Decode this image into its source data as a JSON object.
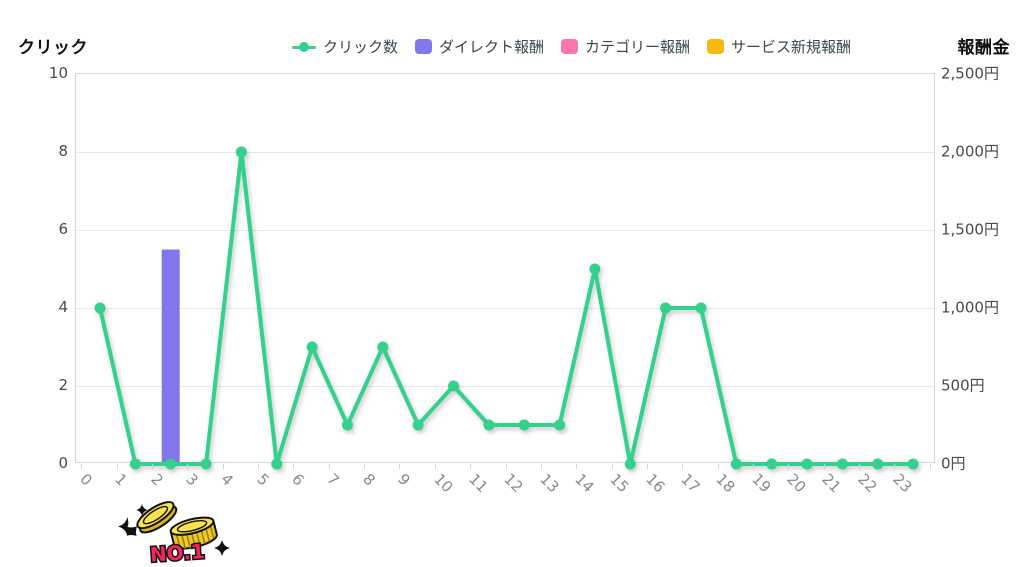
{
  "titles": {
    "left_axis": "クリック",
    "right_axis": "報酬金"
  },
  "legend": {
    "items": [
      {
        "label": "クリック数",
        "color": "#34d18d",
        "marker": "line-dot"
      },
      {
        "label": "ダイレクト報酬",
        "color": "#8277ea",
        "marker": "box"
      },
      {
        "label": "カテゴリー報酬",
        "color": "#fa75ab",
        "marker": "box"
      },
      {
        "label": "サービス新規報酬",
        "color": "#f5ba0b",
        "marker": "box"
      }
    ]
  },
  "badge": {
    "label": "NO.1"
  },
  "colors": {
    "line_green": "#34d18d",
    "bar_purple": "#8277ea",
    "pink": "#fa75ab",
    "yellow": "#f5ba0b",
    "axis_line": "#ccd6eb",
    "gridline": "#e7e7e7",
    "x_label": "#8a8a8a",
    "y_label": "#4a4a4a",
    "badge_red": "#f0275a"
  },
  "chart_data": {
    "type": "mixed-line-bar",
    "categories": [
      "0",
      "1",
      "2",
      "3",
      "4",
      "5",
      "6",
      "7",
      "8",
      "9",
      "10",
      "11",
      "12",
      "13",
      "14",
      "15",
      "16",
      "17",
      "18",
      "19",
      "20",
      "21",
      "22",
      "23"
    ],
    "series": [
      {
        "name": "クリック数",
        "type": "line",
        "axis": "left",
        "color": "#34d18d",
        "values": [
          4,
          0,
          0,
          0,
          8,
          0,
          3,
          1,
          3,
          1,
          2,
          1,
          1,
          1,
          5,
          0,
          4,
          4,
          0,
          0,
          0,
          0,
          0,
          0
        ]
      },
      {
        "name": "ダイレクト報酬",
        "type": "bar",
        "axis": "right",
        "color": "#8277ea",
        "values": [
          0,
          0,
          1375,
          0,
          0,
          0,
          0,
          0,
          0,
          0,
          0,
          0,
          0,
          0,
          0,
          0,
          0,
          0,
          0,
          0,
          0,
          0,
          0,
          0
        ]
      },
      {
        "name": "カテゴリー報酬",
        "type": "bar",
        "axis": "right",
        "color": "#fa75ab",
        "values": [
          0,
          0,
          0,
          0,
          0,
          0,
          0,
          0,
          0,
          0,
          0,
          0,
          0,
          0,
          0,
          0,
          0,
          0,
          0,
          0,
          0,
          0,
          0,
          0
        ]
      },
      {
        "name": "サービス新規報酬",
        "type": "bar",
        "axis": "right",
        "color": "#f5ba0b",
        "values": [
          0,
          0,
          0,
          0,
          0,
          0,
          0,
          0,
          0,
          0,
          0,
          0,
          0,
          0,
          0,
          0,
          0,
          0,
          0,
          0,
          0,
          0,
          0,
          0
        ]
      }
    ],
    "y_left": {
      "title": "クリック",
      "ticks": [
        0,
        2,
        4,
        6,
        8,
        10
      ],
      "range": [
        0,
        10
      ]
    },
    "y_right": {
      "title": "報酬金",
      "ticks": [
        0,
        500,
        1000,
        1500,
        2000,
        2500
      ],
      "tick_labels": [
        "0円",
        "500円",
        "1,000円",
        "1,500円",
        "2,000円",
        "2,500円"
      ],
      "range": [
        0,
        2500
      ]
    },
    "grid": "horizontal-only",
    "legend_position": "top-center",
    "x_label_rotation_deg": 45
  }
}
